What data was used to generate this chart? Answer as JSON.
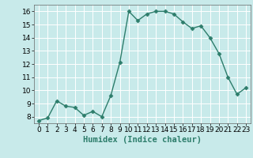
{
  "x": [
    0,
    1,
    2,
    3,
    4,
    5,
    6,
    7,
    8,
    9,
    10,
    11,
    12,
    13,
    14,
    15,
    16,
    17,
    18,
    19,
    20,
    21,
    22,
    23
  ],
  "y": [
    7.7,
    7.9,
    9.2,
    8.8,
    8.7,
    8.1,
    8.4,
    8.0,
    9.6,
    12.1,
    16.0,
    15.3,
    15.8,
    16.0,
    16.0,
    15.8,
    15.2,
    14.7,
    14.9,
    14.0,
    12.8,
    11.0,
    9.7,
    10.2
  ],
  "line_color": "#2d7d6b",
  "marker": "D",
  "markersize": 2.5,
  "linewidth": 1.0,
  "xlabel": "Humidex (Indice chaleur)",
  "ylim": [
    7.5,
    16.5
  ],
  "xlim": [
    -0.5,
    23.5
  ],
  "yticks": [
    8,
    9,
    10,
    11,
    12,
    13,
    14,
    15,
    16
  ],
  "xticks": [
    0,
    1,
    2,
    3,
    4,
    5,
    6,
    7,
    8,
    9,
    10,
    11,
    12,
    13,
    14,
    15,
    16,
    17,
    18,
    19,
    20,
    21,
    22,
    23
  ],
  "bg_color": "#c8eaea",
  "grid_color": "#f0f0f0",
  "xlabel_fontsize": 7.5,
  "tick_fontsize": 6.5
}
